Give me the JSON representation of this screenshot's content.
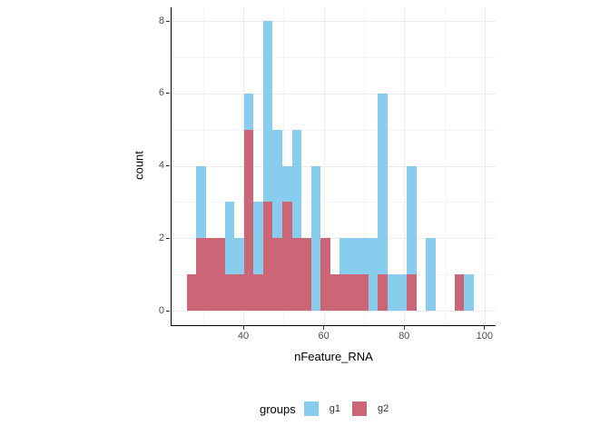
{
  "chart_data": {
    "type": "bar",
    "variant": "stacked_histogram",
    "title": "",
    "xlabel": "nFeature_RNA",
    "ylabel": "count",
    "x_ticks": [
      40,
      60,
      80,
      100
    ],
    "x_minor_ticks": [
      30,
      50,
      70,
      90
    ],
    "y_ticks": [
      0,
      2,
      4,
      6,
      8
    ],
    "y_minor_ticks": [
      1,
      3,
      5,
      7
    ],
    "xlim": [
      22.1,
      102.6
    ],
    "ylim": [
      0,
      8.4
    ],
    "grid": true,
    "legend_position": "bottom",
    "bin_start": 25.9,
    "bin_width": 2.38,
    "stack_bottom_to_top": [
      "g2",
      "g1"
    ],
    "series": [
      {
        "name": "g2",
        "color": "#CC6677",
        "values": [
          1,
          2,
          2,
          2,
          1,
          1,
          5,
          1,
          3,
          2,
          3,
          2,
          2,
          0,
          2,
          1,
          1,
          1,
          1,
          0,
          1,
          0,
          0,
          1,
          0,
          0,
          0,
          0,
          1,
          0
        ]
      },
      {
        "name": "g1",
        "color": "#88CCEE",
        "values": [
          0,
          2,
          0,
          0,
          2,
          1,
          1,
          2,
          5,
          3,
          1,
          3,
          0,
          4,
          0,
          0,
          1,
          1,
          1,
          2,
          5,
          1,
          1,
          3,
          0,
          2,
          0,
          0,
          0,
          1
        ]
      }
    ],
    "legend": {
      "title": "groups",
      "entries": [
        {
          "label": "g1",
          "color": "#88CCEE"
        },
        {
          "label": "g2",
          "color": "#CC6677"
        }
      ]
    },
    "colors": {
      "axis_line": "#000000",
      "tick_label": "#4D4D4D",
      "major_grid": "#ECECEC",
      "minor_grid": "#F5F5F5",
      "background": "#FFFFFF"
    }
  }
}
